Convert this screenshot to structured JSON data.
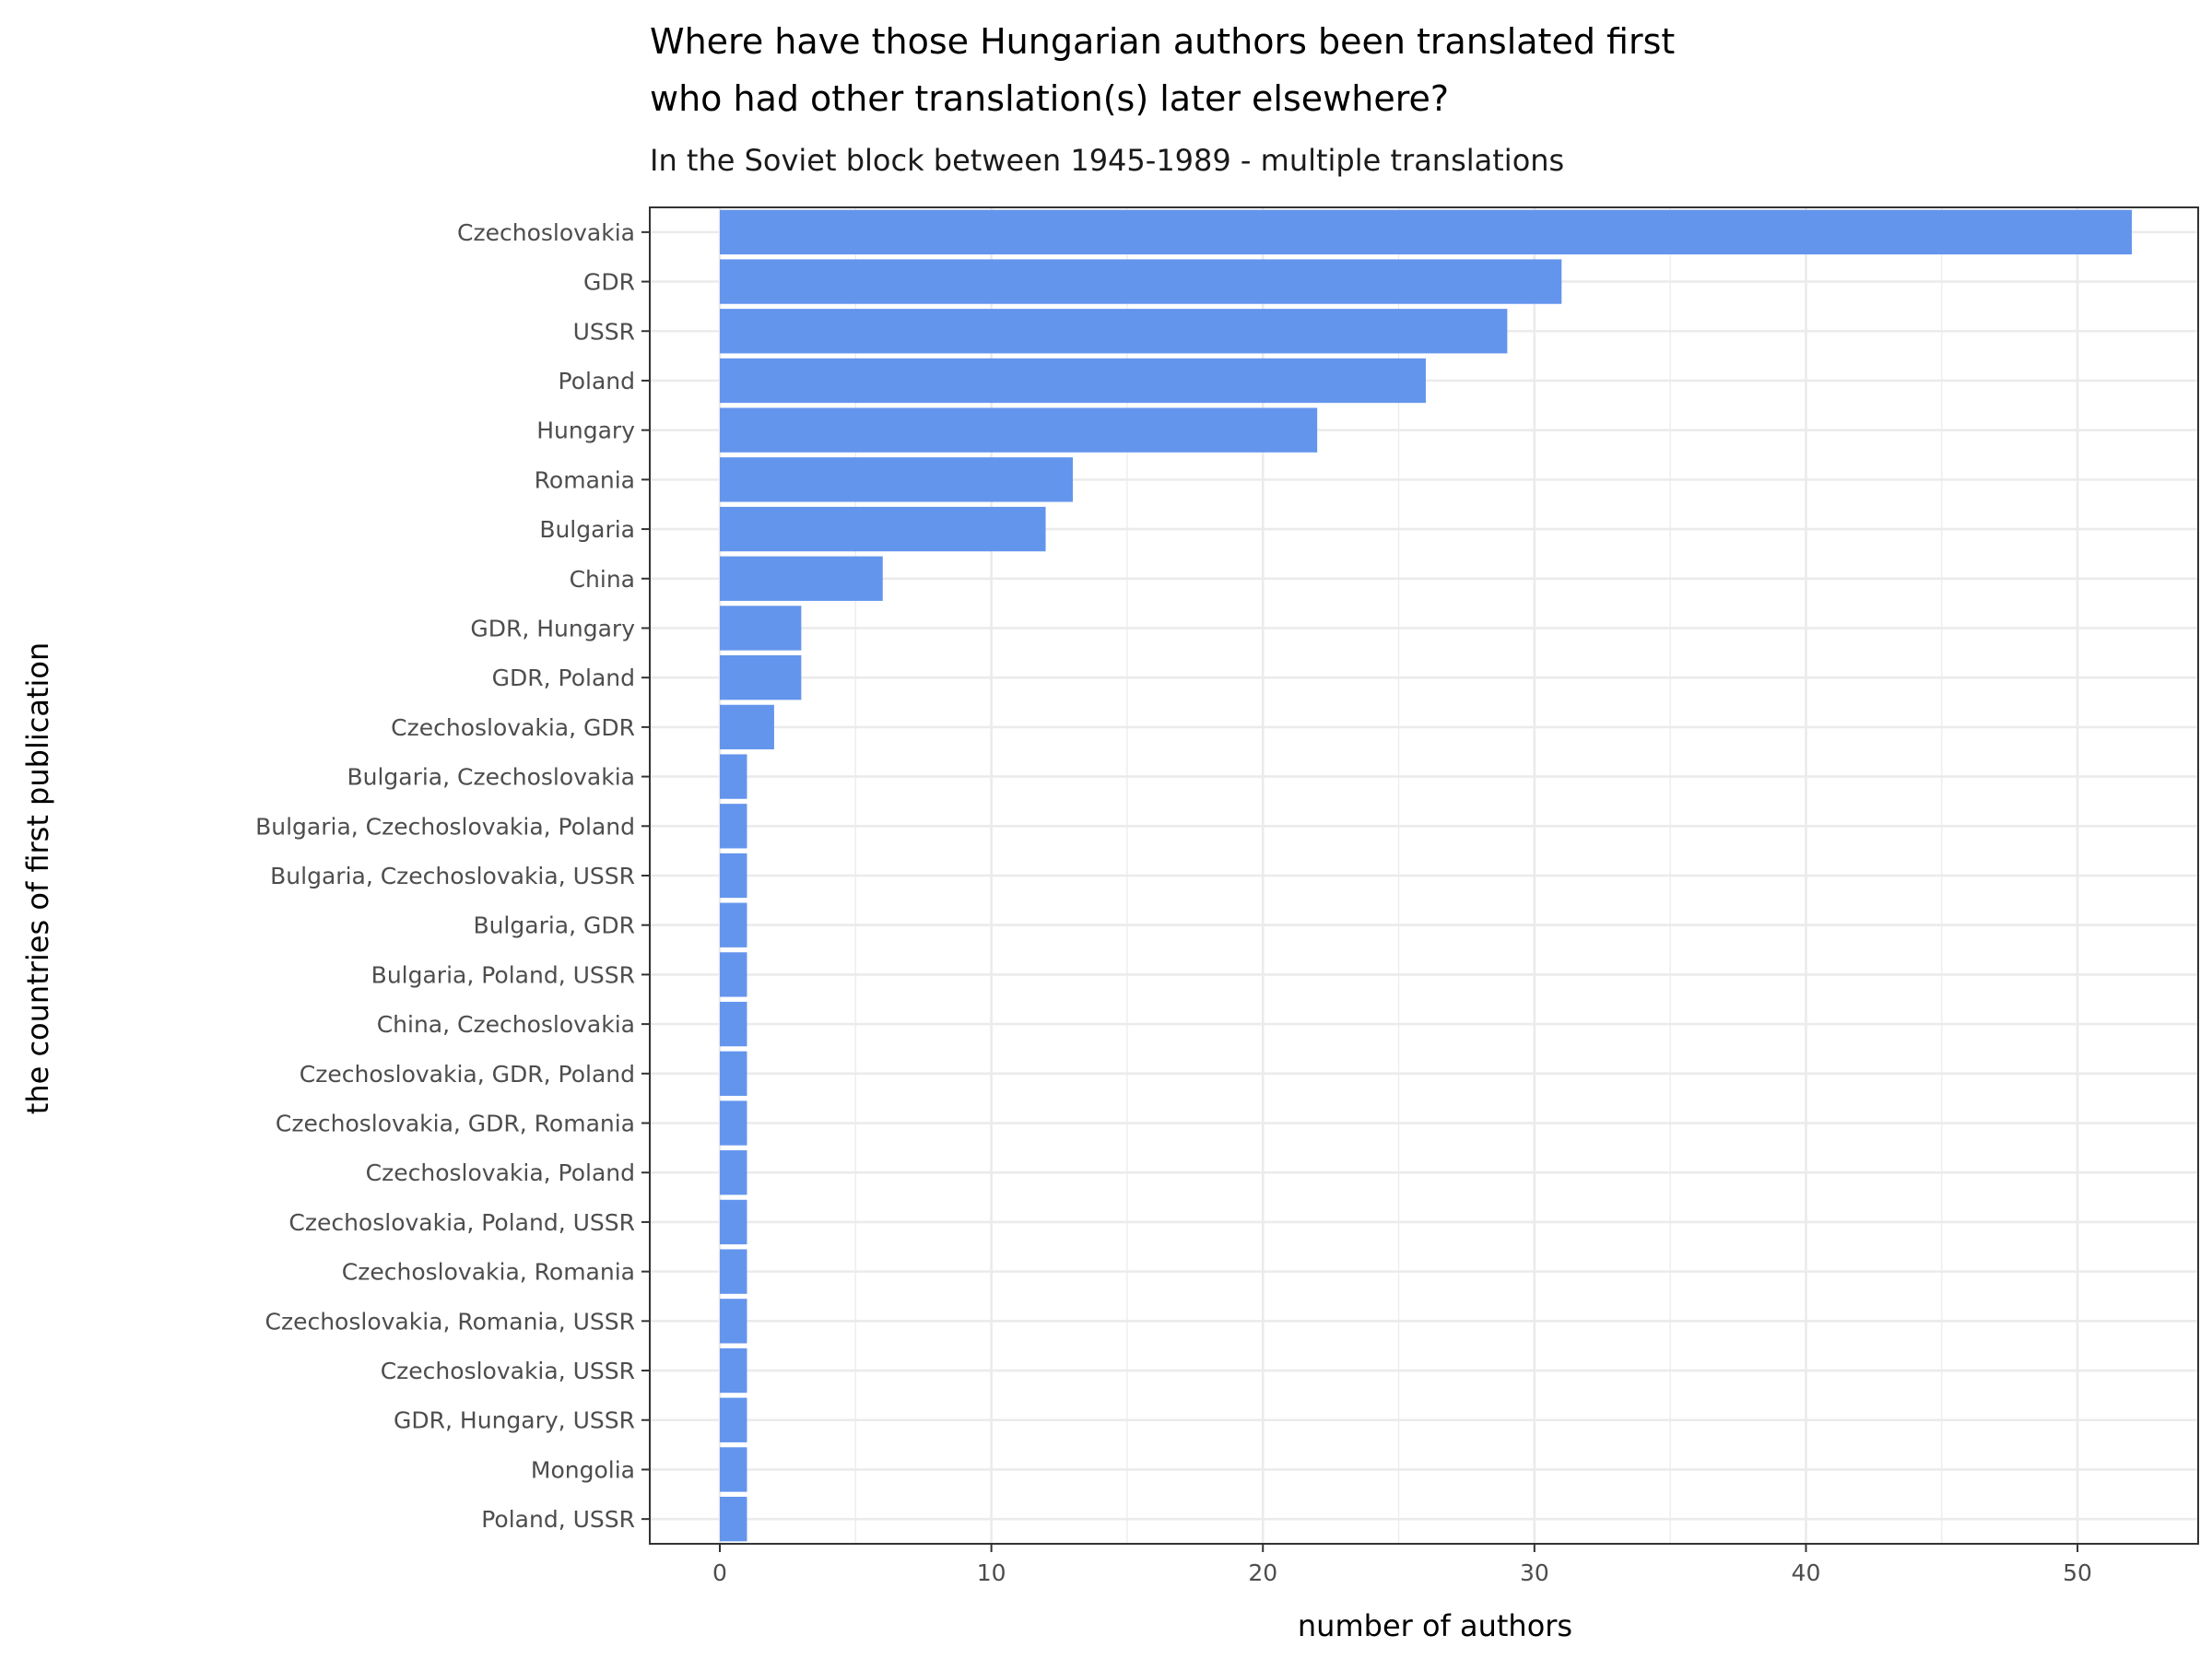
{
  "chart_data": {
    "type": "bar",
    "orientation": "horizontal",
    "title": "Where have those Hungarian authors been translated first who had other translation(s) later elsewhere?",
    "title_lines": [
      "Where have those Hungarian authors been translated first",
      "who had other translation(s) later elsewhere?"
    ],
    "subtitle": "In the Soviet block between 1945-1989 - multiple translations",
    "xlabel": "number of authors",
    "ylabel": "the countries of first publication",
    "xlim": [
      0,
      55
    ],
    "xticks": [
      0,
      10,
      20,
      30,
      40,
      50
    ],
    "grid": true,
    "legend": "none",
    "bar_color": "#6495ED",
    "categories": [
      "Czechoslovakia",
      "GDR",
      "USSR",
      "Poland",
      "Hungary",
      "Romania",
      "Bulgaria",
      "China",
      "GDR, Hungary",
      "GDR, Poland",
      "Czechoslovakia, GDR",
      "Bulgaria, Czechoslovakia",
      "Bulgaria, Czechoslovakia, Poland",
      "Bulgaria, Czechoslovakia, USSR",
      "Bulgaria, GDR",
      "Bulgaria, Poland, USSR",
      "China, Czechoslovakia",
      "Czechoslovakia, GDR, Poland",
      "Czechoslovakia, GDR, Romania",
      "Czechoslovakia, Poland",
      "Czechoslovakia, Poland, USSR",
      "Czechoslovakia, Romania",
      "Czechoslovakia, Romania, USSR",
      "Czechoslovakia, USSR",
      "GDR, Hungary, USSR",
      "Mongolia",
      "Poland, USSR"
    ],
    "values": [
      52,
      31,
      29,
      26,
      22,
      13,
      12,
      6,
      3,
      3,
      2,
      1,
      1,
      1,
      1,
      1,
      1,
      1,
      1,
      1,
      1,
      1,
      1,
      1,
      1,
      1,
      1
    ]
  }
}
